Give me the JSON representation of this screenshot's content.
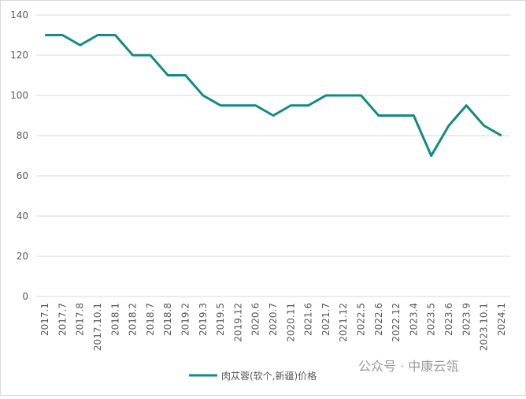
{
  "chart_data": {
    "type": "line",
    "categories": [
      "2017.1",
      "2017.7",
      "2017.8",
      "2017.10.1",
      "2018.1",
      "2018.2",
      "2018.7",
      "2018.8",
      "2019.2",
      "2019.3",
      "2019.5",
      "2019.12",
      "2020.6",
      "2020.7",
      "2020.11",
      "2021.6",
      "2021.7",
      "2021.12",
      "2022.5",
      "2022.6",
      "2022.12",
      "2023.4",
      "2023.5",
      "2023.6",
      "2023.9",
      "2023.10.1",
      "2024.1"
    ],
    "series": [
      {
        "name": "肉苁蓉(软个,新疆)价格",
        "color": "#138a85",
        "values": [
          130,
          130,
          125,
          130,
          130,
          120,
          120,
          110,
          110,
          100,
          95,
          95,
          95,
          90,
          95,
          95,
          100,
          100,
          100,
          90,
          90,
          90,
          70,
          85,
          95,
          85,
          80
        ]
      }
    ],
    "ylim": [
      0,
      140
    ],
    "yticks": [
      0,
      20,
      40,
      60,
      80,
      100,
      120,
      140
    ],
    "grid": true,
    "watermark": "公众号 · 中康云瓴"
  }
}
